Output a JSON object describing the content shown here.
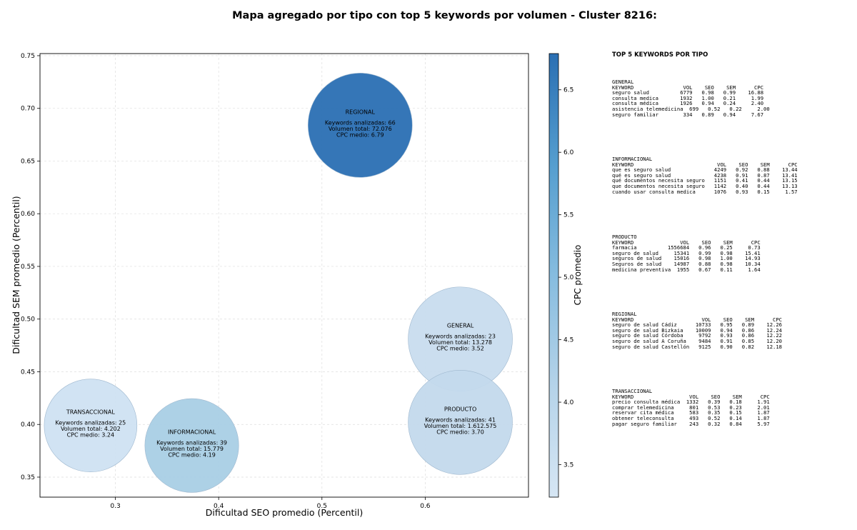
{
  "title": "Mapa agregado por tipo con top 5 keywords por volumen - Cluster 8216:",
  "chart_data": {
    "type": "scatter",
    "xlabel": "Dificultad SEO promedio (Percentil)",
    "ylabel": "Dificultad SEM promedio (Percentil)",
    "xlim": [
      0.227,
      0.7
    ],
    "ylim": [
      0.331,
      0.752
    ],
    "x_ticks": [
      0.3,
      0.4,
      0.5,
      0.6
    ],
    "x_tick_labels": [
      "0.3",
      "0.4",
      "0.5",
      "0.6"
    ],
    "y_ticks": [
      0.35,
      0.4,
      0.45,
      0.5,
      0.55,
      0.6,
      0.65,
      0.7,
      0.75
    ],
    "y_tick_labels": [
      "0.35",
      "0.40",
      "0.45",
      "0.50",
      "0.55",
      "0.60",
      "0.65",
      "0.70",
      "0.75"
    ],
    "grid": true,
    "colorbar": {
      "label": "CPC promedio",
      "range": [
        3.24,
        6.79
      ],
      "ticks": [
        3.5,
        4.0,
        4.5,
        5.0,
        5.5,
        6.0,
        6.5
      ],
      "tick_labels": [
        "3.5",
        "4.0",
        "4.5",
        "5.0",
        "5.5",
        "6.0",
        "6.5"
      ],
      "colormap": "Blues"
    },
    "bubbles": [
      {
        "tipo": "REGIONAL",
        "x": 0.537,
        "y": 0.684,
        "keywords_line": "Keywords analizadas: 66",
        "volumen_line": "Volumen total: 72.076",
        "cpc_line": "CPC medio: 6.79",
        "cpc": 6.79,
        "size": 1.0,
        "color": "#2a6fb3"
      },
      {
        "tipo": "GENERAL",
        "x": 0.634,
        "y": 0.481,
        "keywords_line": "Keywords analizadas: 23",
        "volumen_line": "Volumen total: 13.278",
        "cpc_line": "CPC medio: 3.52",
        "cpc": 3.52,
        "size": 1.0,
        "color": "#c8dcee"
      },
      {
        "tipo": "PRODUCTO",
        "x": 0.634,
        "y": 0.402,
        "keywords_line": "Keywords analizadas: 41",
        "volumen_line": "Volumen total: 1.612.575",
        "cpc_line": "CPC medio: 3.70",
        "cpc": 3.7,
        "size": 1.0,
        "color": "#c3d9ec"
      },
      {
        "tipo": "TRANSACCIONAL",
        "x": 0.276,
        "y": 0.399,
        "keywords_line": "Keywords analizadas: 25",
        "volumen_line": "Volumen total: 4.202",
        "cpc_line": "CPC medio: 3.24",
        "cpc": 3.24,
        "size": 0.89,
        "color": "#cfe1f2"
      },
      {
        "tipo": "INFORMACIONAL",
        "x": 0.374,
        "y": 0.38,
        "keywords_line": "Keywords analizadas: 39",
        "volumen_line": "Volumen total: 15.779",
        "cpc_line": "CPC medio: 4.19",
        "cpc": 4.19,
        "size": 0.9,
        "color": "#a9cfe5"
      }
    ]
  },
  "panel": {
    "title": "TOP 5 KEYWORDS POR TIPO",
    "groups": [
      {
        "name": "GENERAL",
        "header": "KEYWORD                VOL    SEO    SEM      CPC",
        "rows": [
          "seguro salud          6779   0.98   0.99    16.88",
          "consulta medica       1932   1.00   0.21     1.99",
          "consulta médica       1926   0.94   0.24     2.40",
          "asistencia telemedicina  699   0.52   0.22     2.00",
          "seguro familiar        334   0.89   0.94     7.67"
        ]
      },
      {
        "name": "INFORMACIONAL",
        "header": "KEYWORD                           VOL    SEO    SEM      CPC",
        "rows": [
          "que es seguro salud              4249   0.92   0.88    13.44",
          "qué es seguro salud              4238   0.91   0.87    13.41",
          "qué documentos necesita seguro   1151   0.41   0.44    13.15",
          "que documentos necesita seguro   1142   0.40   0.44    13.13",
          "cuando usar consulta medica      1076   0.93   0.15     1.57"
        ]
      },
      {
        "name": "PRODUCTO",
        "header": "KEYWORD               VOL    SEO    SEM      CPC",
        "rows": [
          "farmacia          1556684   0.96   0.25     0.73",
          "seguro de salud     15341   0.99   0.98    15.41",
          "seguros de salud    15016   0.98   1.00    14.93",
          "Seguros de salud    14987   0.88   0.98    10.34",
          "medicina preventiva  1955   0.67   0.11     1.64"
        ]
      },
      {
        "name": "REGIONAL",
        "header": "KEYWORD                      VOL    SEO    SEM      CPC",
        "rows": [
          "seguro de salud Cádiz      10733   0.95   0.89    12.26",
          "seguro de salud Bizkaia    10009   0.94   0.86    12.24",
          "seguro de salud Córdoba     9792   0.93   0.86    12.22",
          "seguro de salud A Coruña    9484   0.91   0.85    12.20",
          "seguro de salud Castellón   9125   0.90   0.82    12.18"
        ]
      },
      {
        "name": "TRANSACCIONAL",
        "header": "KEYWORD                  VOL    SEO    SEM      CPC",
        "rows": [
          "precio consulta médica  1332   0.39   0.18     1.91",
          "comprar telemedicina     801   0.53   0.23     2.01",
          "reservar cita médica     583   0.35   0.15     1.87",
          "obtener teleconsulta     493   0.52   0.14     1.87",
          "pagar seguro familiar    243   0.32   0.84     5.97"
        ]
      }
    ]
  }
}
